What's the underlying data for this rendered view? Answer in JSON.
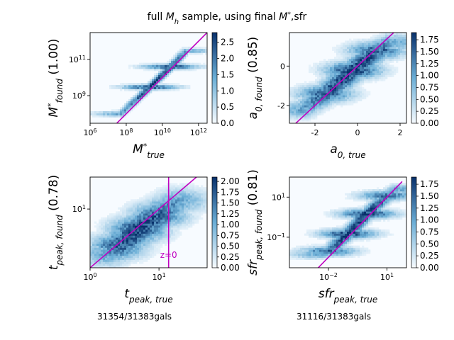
{
  "title": "full M_h sample, using final M*,sfr",
  "colormap": {
    "low": "#f7fbff",
    "mid": "#6baed6",
    "high": "#08306b"
  },
  "fit_color": "#c000c0",
  "chart_data": [
    {
      "type": "heatmap",
      "id": "mstar",
      "xlabel": "M*_true",
      "ylabel": "M*_found",
      "score": "(1.00)",
      "xscale": "log",
      "yscale": "log",
      "xlim": [
        1000000.0,
        3000000000000.0
      ],
      "ylim": [
        30000000.0,
        3000000000000.0
      ],
      "xticks": [
        {
          "v": 1000000.0,
          "label": "10^6"
        },
        {
          "v": 100000000.0,
          "label": "10^8"
        },
        {
          "v": 10000000000.0,
          "label": "10^10"
        },
        {
          "v": 1000000000000.0,
          "label": "10^12"
        }
      ],
      "yticks": [
        {
          "v": 1000000000.0,
          "label": "10^9"
        },
        {
          "v": 100000000000.0,
          "label": "10^11"
        }
      ],
      "colorbar": {
        "min": 0,
        "max": 2.8,
        "ticks": [
          "0.0",
          "0.5",
          "1.0",
          "1.5",
          "2.0",
          "2.5"
        ]
      },
      "density_path": [
        [
          50000000.0,
          100000000.0
        ],
        [
          2000000000.0,
          3000000000.0
        ],
        [
          30000000000.0,
          40000000000.0
        ],
        [
          200000000000.0,
          300000000000.0
        ]
      ],
      "density_spread_dex": 0.15,
      "line": [
        [
          1000000.0,
          1000000.0
        ],
        [
          3000000000000.0,
          3000000000000.0
        ]
      ]
    },
    {
      "type": "heatmap",
      "id": "a0",
      "xlabel": "a_0,true",
      "ylabel": "a_0,found",
      "score": "(0.85)",
      "xscale": "linear",
      "yscale": "linear",
      "xlim": [
        -3.2,
        2.3
      ],
      "ylim": [
        -2.9,
        1.7
      ],
      "xticks": [
        {
          "v": -2,
          "label": "-2"
        },
        {
          "v": 0,
          "label": "0"
        },
        {
          "v": 2,
          "label": "2"
        }
      ],
      "yticks": [
        {
          "v": -2,
          "label": "-2"
        },
        {
          "v": 0,
          "label": "0"
        }
      ],
      "colorbar": {
        "min": 0,
        "max": 1.9,
        "ticks": [
          "0.00",
          "0.25",
          "0.50",
          "0.75",
          "1.00",
          "1.25",
          "1.50",
          "1.75"
        ]
      },
      "density_path": [
        [
          -2.6,
          -2.2
        ],
        [
          -1.5,
          -1.4
        ],
        [
          -0.2,
          -0.2
        ],
        [
          0.9,
          0.8
        ],
        [
          1.6,
          1.2
        ]
      ],
      "density_spread": 0.45,
      "line": [
        [
          -3.2,
          -3.2
        ],
        [
          2.3,
          2.3
        ]
      ]
    },
    {
      "type": "heatmap",
      "id": "tpeak",
      "xlabel": "t_peak,true",
      "ylabel": "t_peak,found",
      "score": "(0.78)",
      "xscale": "log",
      "yscale": "log",
      "xlim": [
        1,
        50
      ],
      "ylim": [
        1,
        35
      ],
      "xticks": [
        {
          "v": 1,
          "label": "10^0"
        },
        {
          "v": 10,
          "label": "10^1"
        }
      ],
      "yticks": [
        {
          "v": 10,
          "label": "10^1"
        }
      ],
      "colorbar": {
        "min": 0,
        "max": 2.1,
        "ticks": [
          "0.00",
          "0.25",
          "0.50",
          "0.75",
          "1.00",
          "1.25",
          "1.50",
          "1.75",
          "2.00"
        ]
      },
      "density_path": [
        [
          1.7,
          1.7
        ],
        [
          2.5,
          2.3
        ],
        [
          5,
          4.5
        ],
        [
          10,
          8
        ],
        [
          20,
          14
        ]
      ],
      "density_spread_dex": 0.22,
      "line": [
        [
          1,
          1
        ],
        [
          35,
          35
        ]
      ],
      "vline": {
        "x": 13.8,
        "label": "z=0"
      },
      "footer": "31354/31383gals"
    },
    {
      "type": "heatmap",
      "id": "sfr",
      "xlabel": "sfr_peak,true",
      "ylabel": "sfr_peak,found",
      "score": "(0.81)",
      "xscale": "log",
      "yscale": "log",
      "xlim": [
        0.0001,
        100.0
      ],
      "ylim": [
        0.003,
        100.0
      ],
      "xticks": [
        {
          "v": 0.01,
          "label": "10^-2"
        },
        {
          "v": 10,
          "label": "10^1"
        }
      ],
      "yticks": [
        {
          "v": 0.1,
          "label": "10^-1"
        },
        {
          "v": 10,
          "label": "10^1"
        }
      ],
      "colorbar": {
        "min": 0,
        "max": 1.9,
        "ticks": [
          "0.00",
          "0.25",
          "0.50",
          "0.75",
          "1.00",
          "1.25",
          "1.50",
          "1.75"
        ]
      },
      "density_path": [
        [
          0.003,
          0.015
        ],
        [
          0.01,
          0.02
        ],
        [
          0.1,
          0.15
        ],
        [
          1,
          1.5
        ],
        [
          10,
          12
        ],
        [
          30,
          25
        ]
      ],
      "density_spread_dex": 0.25,
      "line": [
        [
          0.002,
          0.002
        ],
        [
          60,
          60
        ]
      ],
      "footer": "31116/31383gals"
    }
  ]
}
